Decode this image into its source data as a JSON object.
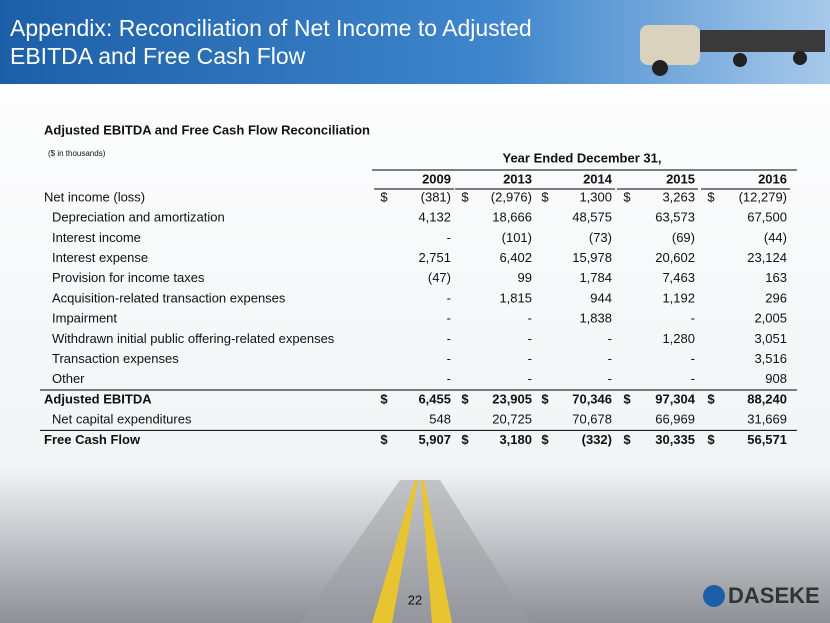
{
  "header": {
    "title_lines": [
      "Appendix: Reconciliation of Net Income to Adjusted",
      "EBITDA and Free Cash Flow"
    ]
  },
  "table": {
    "title": "Adjusted EBITDA and Free Cash Flow Reconciliation",
    "note": "($ in thousands)",
    "group_header": "Year Ended December 31,",
    "columns": [
      "2009",
      "2013",
      "2014",
      "2015",
      "2016"
    ],
    "currency_symbol": "$",
    "rows": [
      {
        "label": "Net income (loss)",
        "values": [
          "(381)",
          "(2,976)",
          "1,300",
          "3,263",
          "(12,279)"
        ],
        "currency": true,
        "bold": false,
        "indent": false
      },
      {
        "label": "Depreciation and amortization",
        "values": [
          "4,132",
          "18,666",
          "48,575",
          "63,573",
          "67,500"
        ],
        "currency": false,
        "bold": false,
        "indent": true
      },
      {
        "label": "Interest income",
        "values": [
          "-",
          "(101)",
          "(73)",
          "(69)",
          "(44)"
        ],
        "currency": false,
        "bold": false,
        "indent": true
      },
      {
        "label": "Interest expense",
        "values": [
          "2,751",
          "6,402",
          "15,978",
          "20,602",
          "23,124"
        ],
        "currency": false,
        "bold": false,
        "indent": true
      },
      {
        "label": "Provision for income taxes",
        "values": [
          "(47)",
          "99",
          "1,784",
          "7,463",
          "163"
        ],
        "currency": false,
        "bold": false,
        "indent": true
      },
      {
        "label": "Acquisition-related transaction expenses",
        "values": [
          "-",
          "1,815",
          "944",
          "1,192",
          "296"
        ],
        "currency": false,
        "bold": false,
        "indent": true
      },
      {
        "label": "Impairment",
        "values": [
          "-",
          "-",
          "1,838",
          "-",
          "2,005"
        ],
        "currency": false,
        "bold": false,
        "indent": true
      },
      {
        "label": "Withdrawn initial public offering-related expenses",
        "values": [
          "-",
          "-",
          "-",
          "1,280",
          "3,051"
        ],
        "currency": false,
        "bold": false,
        "indent": true
      },
      {
        "label": "Transaction expenses",
        "values": [
          "-",
          "-",
          "-",
          "-",
          "3,516"
        ],
        "currency": false,
        "bold": false,
        "indent": true
      },
      {
        "label": "Other",
        "values": [
          "-",
          "-",
          "-",
          "-",
          "908"
        ],
        "currency": false,
        "bold": false,
        "indent": true
      },
      {
        "label": "Adjusted EBITDA",
        "values": [
          "6,455",
          "23,905",
          "70,346",
          "97,304",
          "88,240"
        ],
        "currency": true,
        "bold": true,
        "indent": false
      },
      {
        "label": "Net capital expenditures",
        "values": [
          "548",
          "20,725",
          "70,678",
          "66,969",
          "31,669"
        ],
        "currency": false,
        "bold": false,
        "indent": true
      },
      {
        "label": "Free Cash Flow",
        "values": [
          "5,907",
          "3,180",
          "(332)",
          "30,335",
          "56,571"
        ],
        "currency": true,
        "bold": true,
        "indent": false
      }
    ]
  },
  "footer": {
    "page_number": "22",
    "logo": "DASEKE"
  }
}
